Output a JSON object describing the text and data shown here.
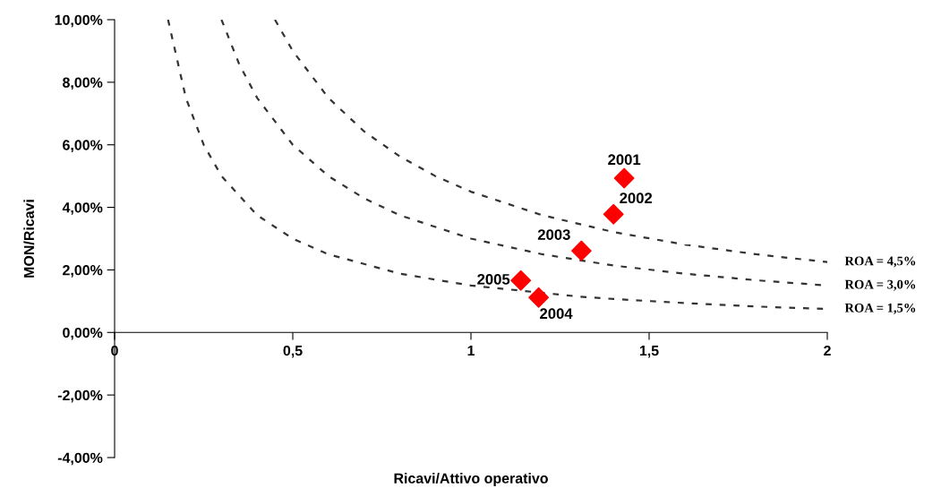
{
  "chart_data": {
    "type": "scatter",
    "xlabel": "Ricavi/Attivo operativo",
    "ylabel": "MON/Ricavi",
    "xlim": [
      0,
      2
    ],
    "xticks": [
      0,
      {
        "value": 0.5,
        "label": "0,5"
      },
      1,
      {
        "value": 1.5,
        "label": "1,5"
      },
      2
    ],
    "ylim": [
      -4,
      10
    ],
    "yticks": [
      {
        "value": -4,
        "label": "-4,00%"
      },
      {
        "value": -2,
        "label": "-2,00%"
      },
      {
        "value": 0,
        "label": "0,00%"
      },
      {
        "value": 2,
        "label": "2,00%"
      },
      {
        "value": 4,
        "label": "4,00%"
      },
      {
        "value": 6,
        "label": "6,00%"
      },
      {
        "value": 8,
        "label": "8,00%"
      },
      {
        "value": 10,
        "label": "10,00%"
      }
    ],
    "grid": false,
    "legend": false,
    "series": [
      {
        "type": "line",
        "name": "ROA = 4,5%",
        "color": "#333333",
        "line_style": "dashed",
        "marker": "none",
        "x": [
          0.45,
          0.5,
          0.6,
          0.7,
          0.8,
          0.9,
          1.0,
          1.2,
          1.4,
          1.6,
          1.8,
          2.0
        ],
        "values": [
          10,
          9,
          7.5,
          6.43,
          5.63,
          5,
          4.5,
          3.75,
          3.21,
          2.81,
          2.5,
          2.25
        ]
      },
      {
        "type": "line",
        "name": "ROA = 3,0%",
        "color": "#333333",
        "line_style": "dashed",
        "marker": "none",
        "x": [
          0.3,
          0.35,
          0.4,
          0.5,
          0.6,
          0.7,
          0.8,
          1.0,
          1.2,
          1.4,
          1.6,
          1.8,
          2.0
        ],
        "values": [
          10,
          8.57,
          7.5,
          6,
          5,
          4.29,
          3.75,
          3,
          2.5,
          2.14,
          1.88,
          1.67,
          1.5
        ]
      },
      {
        "type": "line",
        "name": "ROA = 1,5%",
        "color": "#333333",
        "line_style": "dashed",
        "marker": "none",
        "x": [
          0.15,
          0.2,
          0.25,
          0.3,
          0.4,
          0.5,
          0.6,
          0.8,
          1.0,
          1.3,
          1.4,
          1.6,
          1.8,
          2.0
        ],
        "values": [
          10,
          7.5,
          6,
          5,
          3.75,
          3,
          2.5,
          1.88,
          1.5,
          1.15,
          1.07,
          0.94,
          0.83,
          0.75
        ]
      },
      {
        "color": "#ff0000",
        "marker": "diamond",
        "x": [
          1.43,
          1.4,
          1.31,
          1.19,
          1.14
        ],
        "values": [
          4.93,
          3.78,
          2.61,
          1.12,
          1.66
        ]
      }
    ],
    "annotations": [
      {
        "text": "2001",
        "x": 1.43,
        "y": 4.93
      },
      {
        "text": "2002",
        "x": 1.4,
        "y": 3.78
      },
      {
        "text": "2003",
        "x": 1.31,
        "y": 2.61
      },
      {
        "text": "2004",
        "x": 1.19,
        "y": 1.12
      },
      {
        "text": "2005",
        "x": 1.14,
        "y": 1.66
      }
    ]
  }
}
